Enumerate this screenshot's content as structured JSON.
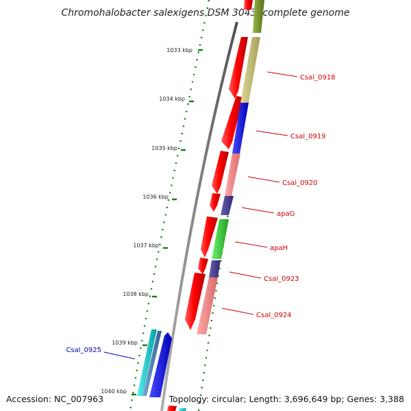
{
  "title": "Chromohalobacter salexigens DSM 3043, complete genome",
  "accession_text": "Accession: NC_007963",
  "topology_text": "Topology: circular; Length: 3,696,649 bp; Genes: 3,388",
  "colors": {
    "backbone": "#808080",
    "tick": "#1a7a1a",
    "label_red": "#cc0000",
    "label_blue": "#0000aa"
  },
  "ticks": [
    {
      "kbp": 1033,
      "label": "1033 kbp"
    },
    {
      "kbp": 1034,
      "label": "1034 kbp"
    },
    {
      "kbp": 1035,
      "label": "1035 kbp"
    },
    {
      "kbp": 1036,
      "label": "1036 kbp"
    },
    {
      "kbp": 1037,
      "label": "1037 kbp"
    },
    {
      "kbp": 1038,
      "label": "1038 kbp"
    },
    {
      "kbp": 1039,
      "label": "1039 kbp"
    },
    {
      "kbp": 1040,
      "label": "1040 kbp"
    }
  ],
  "feature_tracks": [
    {
      "track": "strand-red",
      "color": "#ff0000"
    },
    {
      "track": "gene-colors",
      "colors": [
        "#6b8e23",
        "#bdb76b",
        "#0000ff",
        "#f08080",
        "#483d8b",
        "#32cd32",
        "#483d8b",
        "#f08080"
      ]
    },
    {
      "track": "inner-genes",
      "colors": [
        "#00c8c8",
        "#4682b4",
        "#0000cd"
      ]
    }
  ],
  "gene_labels": [
    {
      "text": "Csal_0918",
      "color": "#cc0000"
    },
    {
      "text": "Csal_0919",
      "color": "#cc0000"
    },
    {
      "text": "Csal_0920",
      "color": "#cc0000"
    },
    {
      "text": "apaG",
      "color": "#cc0000"
    },
    {
      "text": "apaH",
      "color": "#cc0000"
    },
    {
      "text": "Csal_0923",
      "color": "#cc0000"
    },
    {
      "text": "Csal_0924",
      "color": "#cc0000"
    },
    {
      "text": "Csal_0925",
      "color": "#0000aa"
    }
  ]
}
